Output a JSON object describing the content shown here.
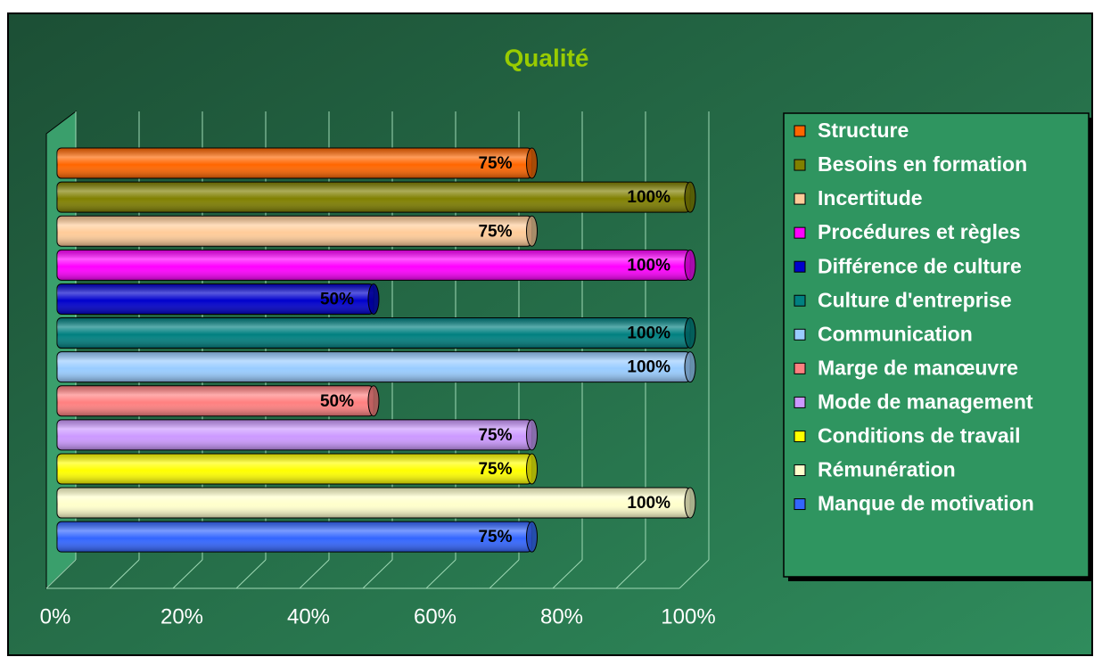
{
  "chart_data": {
    "type": "bar",
    "orientation": "horizontal",
    "title": "Qualité",
    "series": [
      {
        "name": "Structure",
        "color": "#ff6600",
        "values": [
          75
        ],
        "value_labels": [
          "75%"
        ]
      },
      {
        "name": "Besoins en formation",
        "color": "#808000",
        "values": [
          100
        ],
        "value_labels": [
          "100%"
        ]
      },
      {
        "name": "Incertitude",
        "color": "#ffcc99",
        "values": [
          75
        ],
        "value_labels": [
          "75%"
        ]
      },
      {
        "name": "Procédures et règles",
        "color": "#ff00ff",
        "values": [
          100
        ],
        "value_labels": [
          "100%"
        ]
      },
      {
        "name": "Différence de culture",
        "color": "#0000cc",
        "values": [
          50
        ],
        "value_labels": [
          "50%"
        ]
      },
      {
        "name": "Culture d'entreprise",
        "color": "#008080",
        "values": [
          100
        ],
        "value_labels": [
          "100%"
        ]
      },
      {
        "name": "Communication",
        "color": "#99ccff",
        "values": [
          100
        ],
        "value_labels": [
          "100%"
        ]
      },
      {
        "name": "Marge de manœuvre",
        "color": "#ff8080",
        "values": [
          50
        ],
        "value_labels": [
          "50%"
        ]
      },
      {
        "name": "Mode de management",
        "color": "#cc99ff",
        "values": [
          75
        ],
        "value_labels": [
          "75%"
        ]
      },
      {
        "name": "Conditions de travail",
        "color": "#ffff00",
        "values": [
          75
        ],
        "value_labels": [
          "75%"
        ]
      },
      {
        "name": "Rémunération",
        "color": "#ffffcc",
        "values": [
          100
        ],
        "value_labels": [
          "100%"
        ]
      },
      {
        "name": "Manque de motivation",
        "color": "#3366ff",
        "values": [
          75
        ],
        "value_labels": [
          "75%"
        ]
      }
    ],
    "xlim": [
      0,
      100
    ],
    "xticks": [
      {
        "value": 0,
        "label": "0%"
      },
      {
        "value": 20,
        "label": "20%"
      },
      {
        "value": 40,
        "label": "40%"
      },
      {
        "value": 60,
        "label": "60%"
      },
      {
        "value": 80,
        "label": "80%"
      },
      {
        "value": 100,
        "label": "100%"
      }
    ],
    "xminor": [
      10,
      30,
      50,
      70,
      90
    ],
    "grid": true,
    "legend": "right"
  }
}
